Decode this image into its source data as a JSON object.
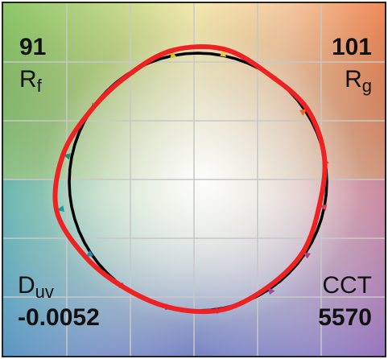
{
  "metrics": {
    "rf": {
      "value": "91",
      "symbol": "R",
      "sub": "f"
    },
    "rg": {
      "value": "101",
      "symbol": "R",
      "sub": "g"
    },
    "duv": {
      "symbol": "D",
      "sub": "uv",
      "value": "-0.0052"
    },
    "cct": {
      "symbol": "CCT",
      "value": "5570"
    }
  },
  "chart_data": {
    "type": "color-vector-graphic",
    "grid": true,
    "grid_divisions": 6,
    "hue_bins": 16,
    "reference_radius": 1.0,
    "test_radii": [
      1.0,
      1.02,
      1.0,
      1.05,
      1.04,
      0.99,
      1.0,
      1.07,
      1.12,
      1.05,
      1.0,
      1.0,
      1.01,
      0.98,
      0.98,
      0.96
    ],
    "series": [
      {
        "name": "",
        "color": "#000000"
      },
      {
        "name": "",
        "color": "#ee2222"
      }
    ],
    "arrow_colors": [
      "#e43a3a",
      "#e86a2a",
      "#ee9a2a",
      "#f0c83a",
      "#d8c020",
      "#a6b82a",
      "#56a042",
      "#1f8f72",
      "#1d9a9c",
      "#1a8fb6",
      "#1a6fae",
      "#3a5aa6",
      "#6a4ea4",
      "#8e4d9e",
      "#b0417e",
      "#d24060"
    ]
  }
}
